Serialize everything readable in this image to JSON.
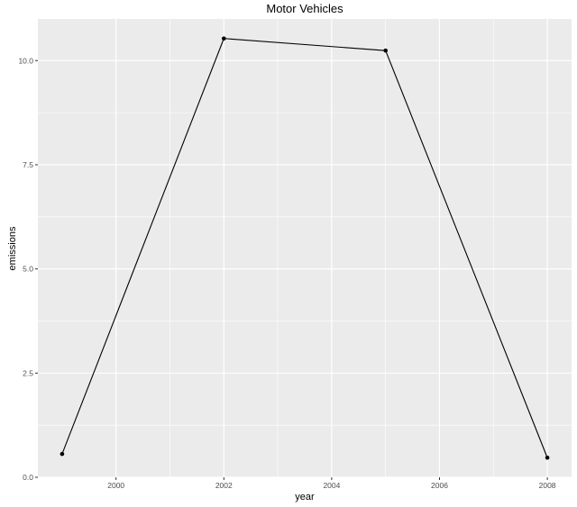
{
  "chart_data": {
    "type": "line",
    "title": "Motor Vehicles",
    "xlabel": "year",
    "ylabel": "emissions",
    "x": [
      1999,
      2002,
      2005,
      2008
    ],
    "series": [
      {
        "values": [
          0.56,
          10.53,
          10.24,
          0.47
        ]
      }
    ],
    "xlim": [
      1998.55,
      2008.45
    ],
    "ylim": [
      0,
      11.0
    ],
    "xticks": [
      2000,
      2002,
      2004,
      2006,
      2008
    ],
    "xtick_labels": [
      "2000",
      "2002",
      "2004",
      "2006",
      "2008"
    ],
    "yticks": [
      0,
      2.5,
      5,
      7.5,
      10
    ],
    "ytick_labels": [
      "0.0",
      "2.5",
      "5.0",
      "7.5",
      "10.0"
    ],
    "grid": true,
    "legend": "none",
    "colors": {
      "panel": "#ebebeb",
      "grid": "#ffffff",
      "line": "#000000",
      "point": "#000000",
      "tick": "#333333"
    }
  }
}
